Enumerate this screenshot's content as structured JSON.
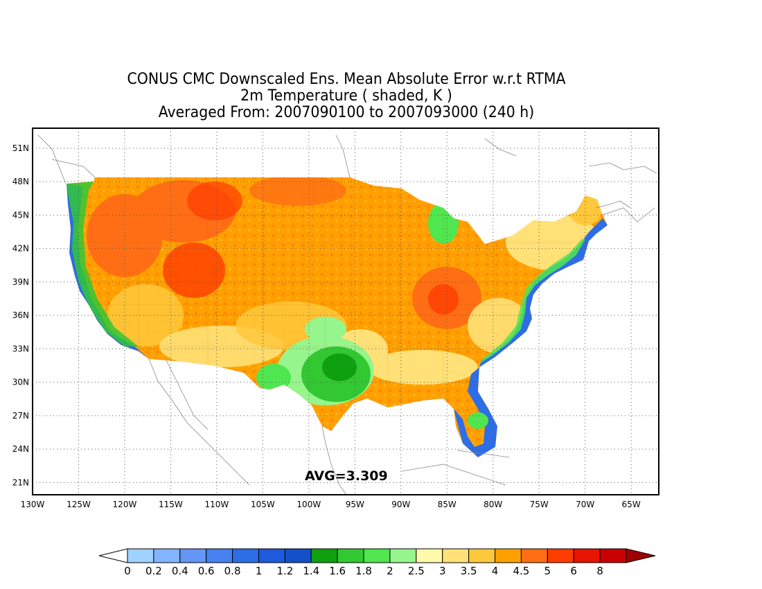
{
  "title": {
    "line1": "CONUS CMC Downscaled Ens. Mean Absolute Error w.r.t RTMA",
    "line2": "2m Temperature ( shaded, K )",
    "line3": "Averaged From: 2007090100 to 2007093000 (240 h)"
  },
  "annotation": "AVG=3.309",
  "map": {
    "lon_labels": [
      "130W",
      "125W",
      "120W",
      "115W",
      "110W",
      "105W",
      "100W",
      "95W",
      "90W",
      "85W",
      "80W",
      "75W",
      "70W",
      "65W"
    ],
    "lat_labels": [
      "51N",
      "48N",
      "45N",
      "42N",
      "39N",
      "36N",
      "33N",
      "30N",
      "27N",
      "24N",
      "21N"
    ],
    "lon_range": [
      -130,
      -62
    ],
    "lat_range": [
      19.9,
      52.8
    ],
    "grid": "dotted"
  },
  "colorbar": {
    "labels": [
      "0",
      "0.2",
      "0.4",
      "0.6",
      "0.8",
      "1",
      "1.2",
      "1.4",
      "1.6",
      "1.8",
      "2",
      "2.5",
      "3",
      "3.5",
      "4",
      "4.5",
      "5",
      "6",
      "8"
    ],
    "colors": [
      "#a0d2ff",
      "#82b4ff",
      "#6496f5",
      "#4682f0",
      "#2d6ee6",
      "#1e5adc",
      "#1450c8",
      "#0fa00f",
      "#32c832",
      "#50e650",
      "#96f58c",
      "#fffaaa",
      "#ffe178",
      "#ffc83c",
      "#ffa000",
      "#ff6e14",
      "#ff3c00",
      "#e61400",
      "#c80000"
    ],
    "under_color": "#ffffff",
    "over_color": "#a00000"
  }
}
